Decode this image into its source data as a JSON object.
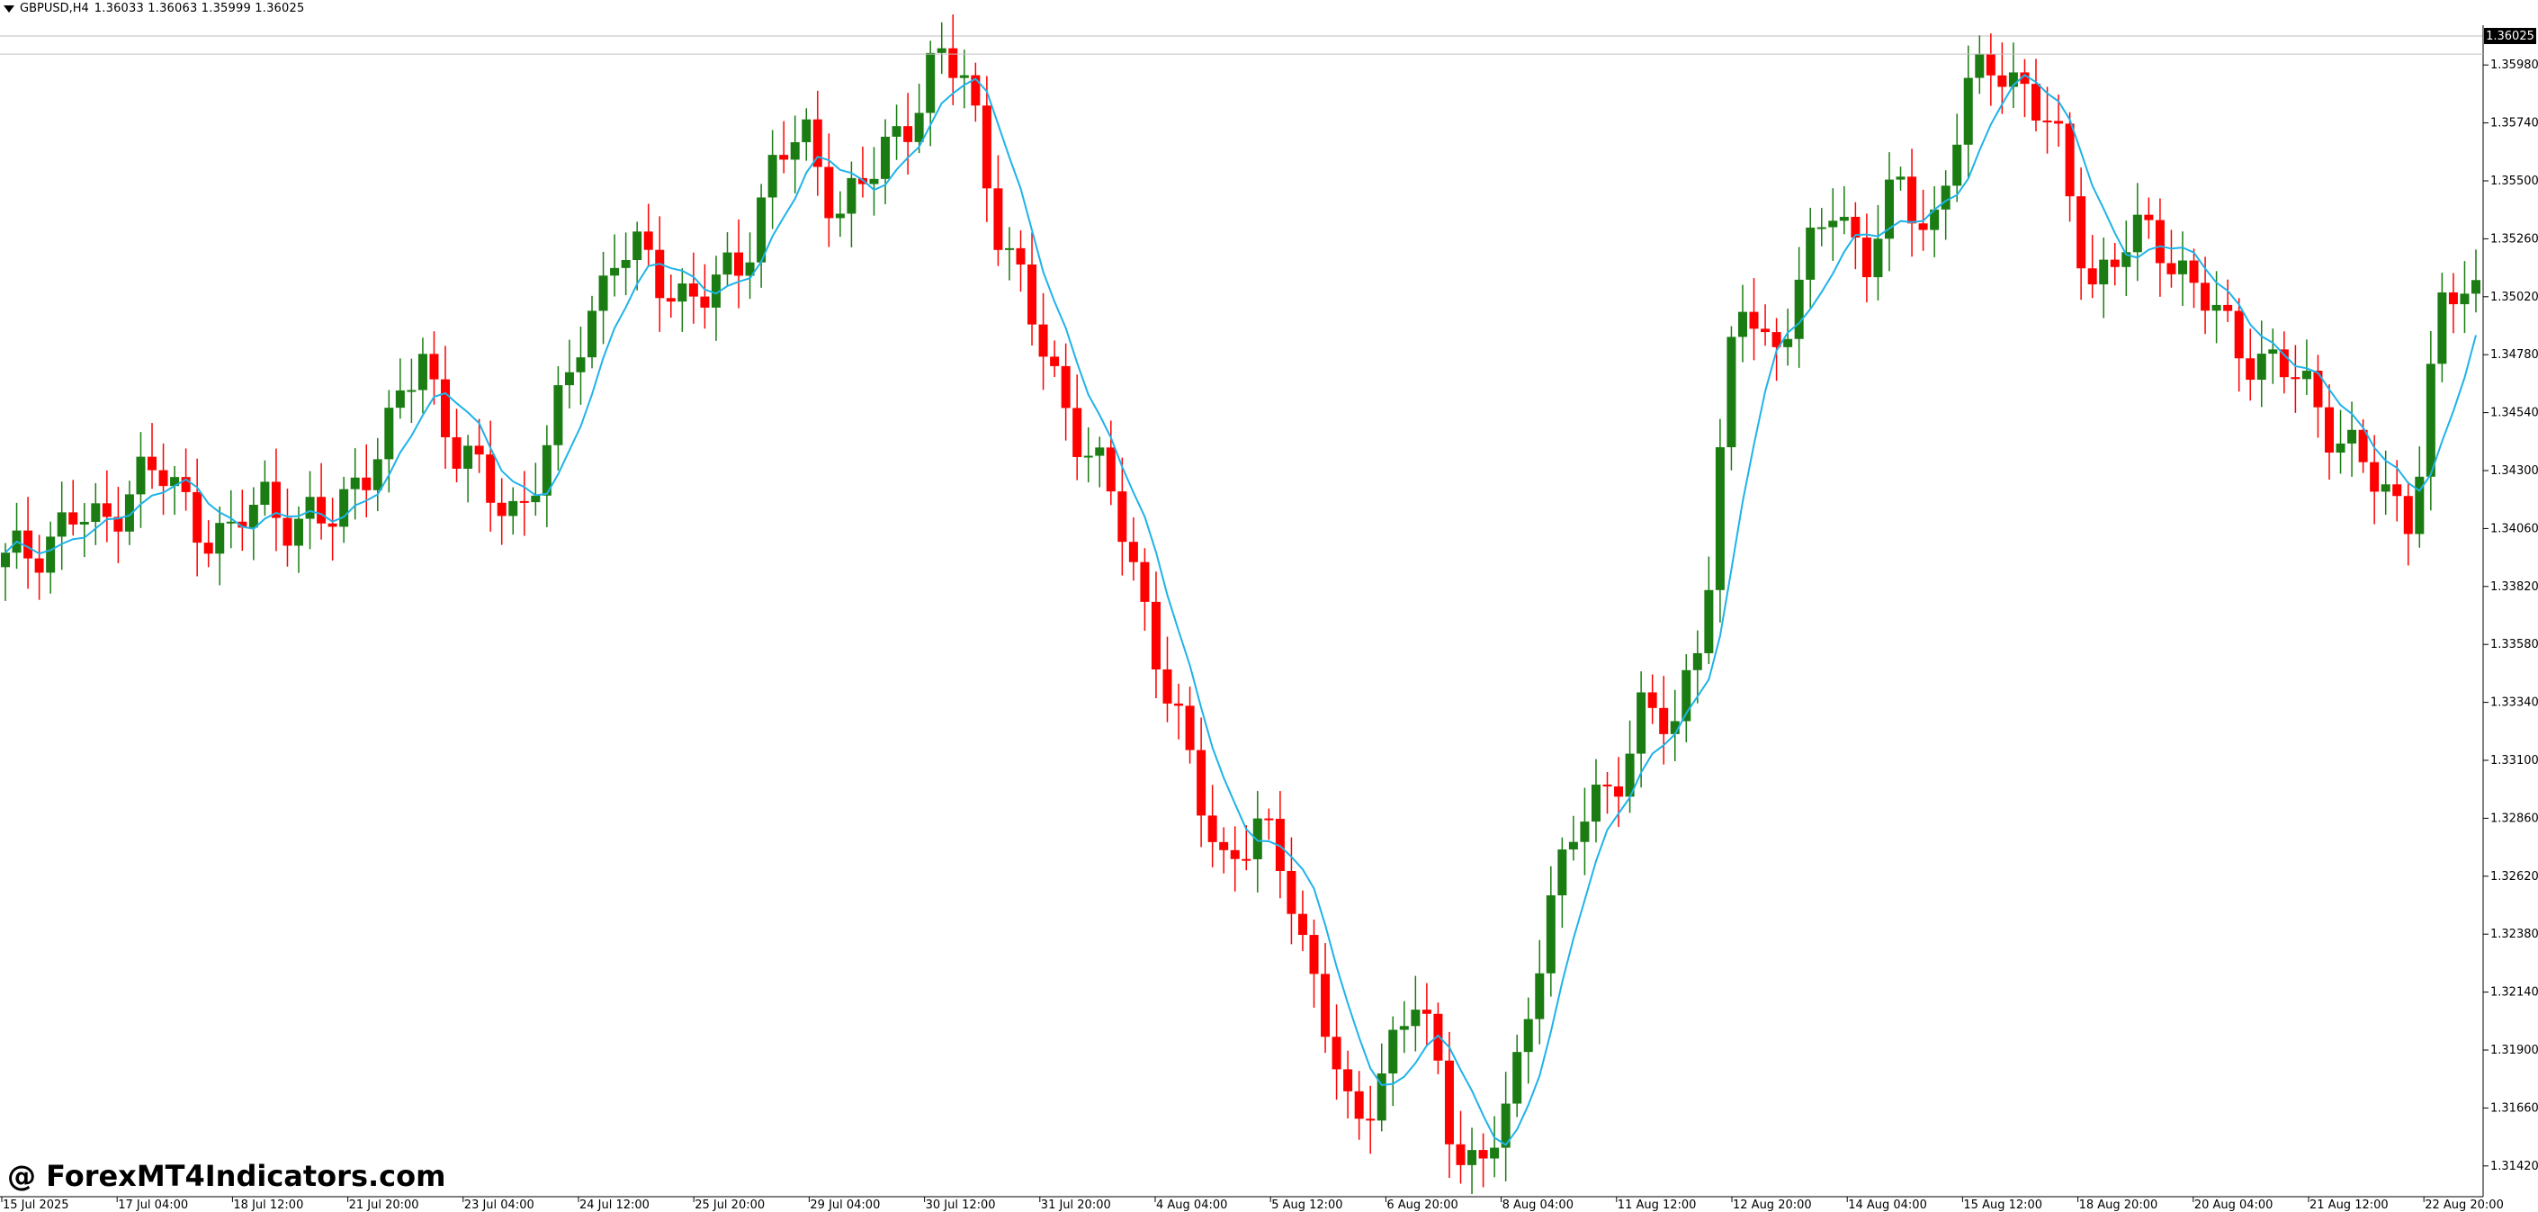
{
  "header": {
    "symbol": "GBPUSD,H4",
    "ohlc": "1.36033 1.36063 1.35999 1.36025"
  },
  "current_price_label": "1.36025",
  "watermark": "@ ForexMT4Indicators.com",
  "colors": {
    "bull": "#1a7c12",
    "bear": "#ff0000",
    "ma_line": "#1fb3e8",
    "grid": "#c0c0c0",
    "axis": "#000000",
    "background": "#ffffff"
  },
  "chart_data": {
    "type": "candlestick",
    "symbol": "GBPUSD",
    "timeframe": "H4",
    "ylim": [
      1.313,
      1.361
    ],
    "y_ticks": [
      "1.35980",
      "1.35740",
      "1.35500",
      "1.35260",
      "1.35020",
      "1.34780",
      "1.34540",
      "1.34300",
      "1.34060",
      "1.33820",
      "1.33580",
      "1.33340",
      "1.33100",
      "1.32860",
      "1.32620",
      "1.32380",
      "1.32140",
      "1.31900",
      "1.31660",
      "1.31420"
    ],
    "x_ticks": [
      "15 Jul 2025",
      "17 Jul 04:00",
      "18 Jul 12:00",
      "21 Jul 20:00",
      "23 Jul 04:00",
      "24 Jul 12:00",
      "25 Jul 20:00",
      "29 Jul 04:00",
      "30 Jul 12:00",
      "31 Jul 20:00",
      "4 Aug 04:00",
      "5 Aug 12:00",
      "6 Aug 20:00",
      "8 Aug 04:00",
      "11 Aug 12:00",
      "12 Aug 20:00",
      "14 Aug 04:00",
      "15 Aug 12:00",
      "18 Aug 20:00",
      "20 Aug 04:00",
      "21 Aug 12:00",
      "22 Aug 20:00"
    ],
    "candles_close_approx": [
      1.339,
      1.34,
      1.341,
      1.3405,
      1.343,
      1.3425,
      1.341,
      1.34,
      1.342,
      1.341,
      1.3405,
      1.343,
      1.3445,
      1.348,
      1.344,
      1.342,
      1.3415,
      1.344,
      1.349,
      1.352,
      1.3515,
      1.3505,
      1.35,
      1.352,
      1.356,
      1.3565,
      1.354,
      1.355,
      1.3575,
      1.36,
      1.359,
      1.353,
      1.349,
      1.346,
      1.343,
      1.34,
      1.335,
      1.33,
      1.327,
      1.328,
      1.326,
      1.321,
      1.315,
      1.319,
      1.321,
      1.316,
      1.314,
      1.317,
      1.325,
      1.328,
      1.33,
      1.333,
      1.332,
      1.338,
      1.35,
      1.348,
      1.351,
      1.354,
      1.352,
      1.3545,
      1.353,
      1.358,
      1.36,
      1.359,
      1.356,
      1.351,
      1.352,
      1.353,
      1.351,
      1.349,
      1.348,
      1.347,
      1.346,
      1.344,
      1.342,
      1.3415,
      1.35,
      1.3505
    ]
  }
}
